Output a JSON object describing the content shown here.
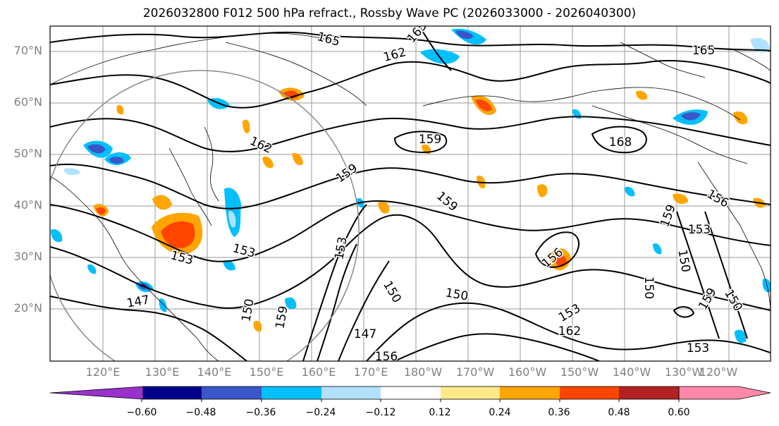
{
  "title": "2026032800 F012 500 hPa refract., Rossby Wave PC (2026033000 - 2026040300)",
  "lat_labels": [
    "70°N",
    "60°N",
    "50°N",
    "40°N",
    "30°N",
    "20°N"
  ],
  "lon_labels": [
    "120°E",
    "130°E",
    "140°E",
    "150°E",
    "160°E",
    "170°E",
    "180°W",
    "170°W",
    "160°W",
    "150°W",
    "140°W",
    "130°W",
    "120°W"
  ],
  "contour_labels": [
    "165",
    "165",
    "162",
    "165",
    "162",
    "159",
    "159",
    "168",
    "159",
    "159",
    "153",
    "153",
    "153",
    "156",
    "156",
    "150",
    "150",
    "150",
    "147",
    "147",
    "156",
    "153",
    "162",
    "153",
    "150",
    "150",
    "159",
    "153",
    "150",
    "159"
  ],
  "colorbar": {
    "ticks": [
      "−0.60",
      "−0.48",
      "−0.36",
      "−0.24",
      "−0.12",
      "0.12",
      "0.24",
      "0.36",
      "0.48",
      "0.60"
    ],
    "colors": [
      "#9932cc",
      "#00008b",
      "#3a56c8",
      "#00bfff",
      "#b0e2ff",
      "#ffffff",
      "#ffe98a",
      "#ffa500",
      "#ff4500",
      "#b22222",
      "#ff88aa"
    ]
  },
  "shading_colors": {
    "orange": "#ffa500",
    "red_orange": "#ff4500",
    "yellow": "#ffe98a",
    "blue": "#00bfff",
    "light_blue": "#b0e2ff",
    "royal_blue": "#3a56c8"
  }
}
